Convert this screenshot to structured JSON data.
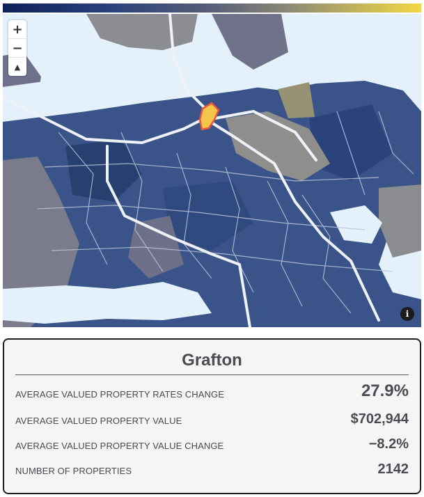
{
  "legend": {
    "colors": [
      "#0f2058",
      "#28407a",
      "#555b78",
      "#8a8876",
      "#c3b45b",
      "#f2d745"
    ]
  },
  "map": {
    "controls": {
      "zoom_in": "+",
      "zoom_out": "−",
      "compass": "▲",
      "info": "i"
    },
    "icons": [
      "plus-icon",
      "minus-icon",
      "compass-icon",
      "info-icon"
    ],
    "highlighted_suburb": "Grafton",
    "colors": {
      "water": "#e4f1fb",
      "land_grey": "#8c8d93",
      "land_blue": "#3a5489",
      "land_dark": "#27406f",
      "roads": "#dce3ef",
      "highlight": "#f2c64a"
    }
  },
  "card": {
    "title": "Grafton",
    "rows": [
      {
        "label": "Average Valued Property Rates Change",
        "value": "27.9%"
      },
      {
        "label": "Average Valued Property Value",
        "value": "$702,944"
      },
      {
        "label": "Average Valued Property Value Change",
        "value": "−8.2%"
      },
      {
        "label": "Number of Properties",
        "value": "2142"
      }
    ]
  }
}
